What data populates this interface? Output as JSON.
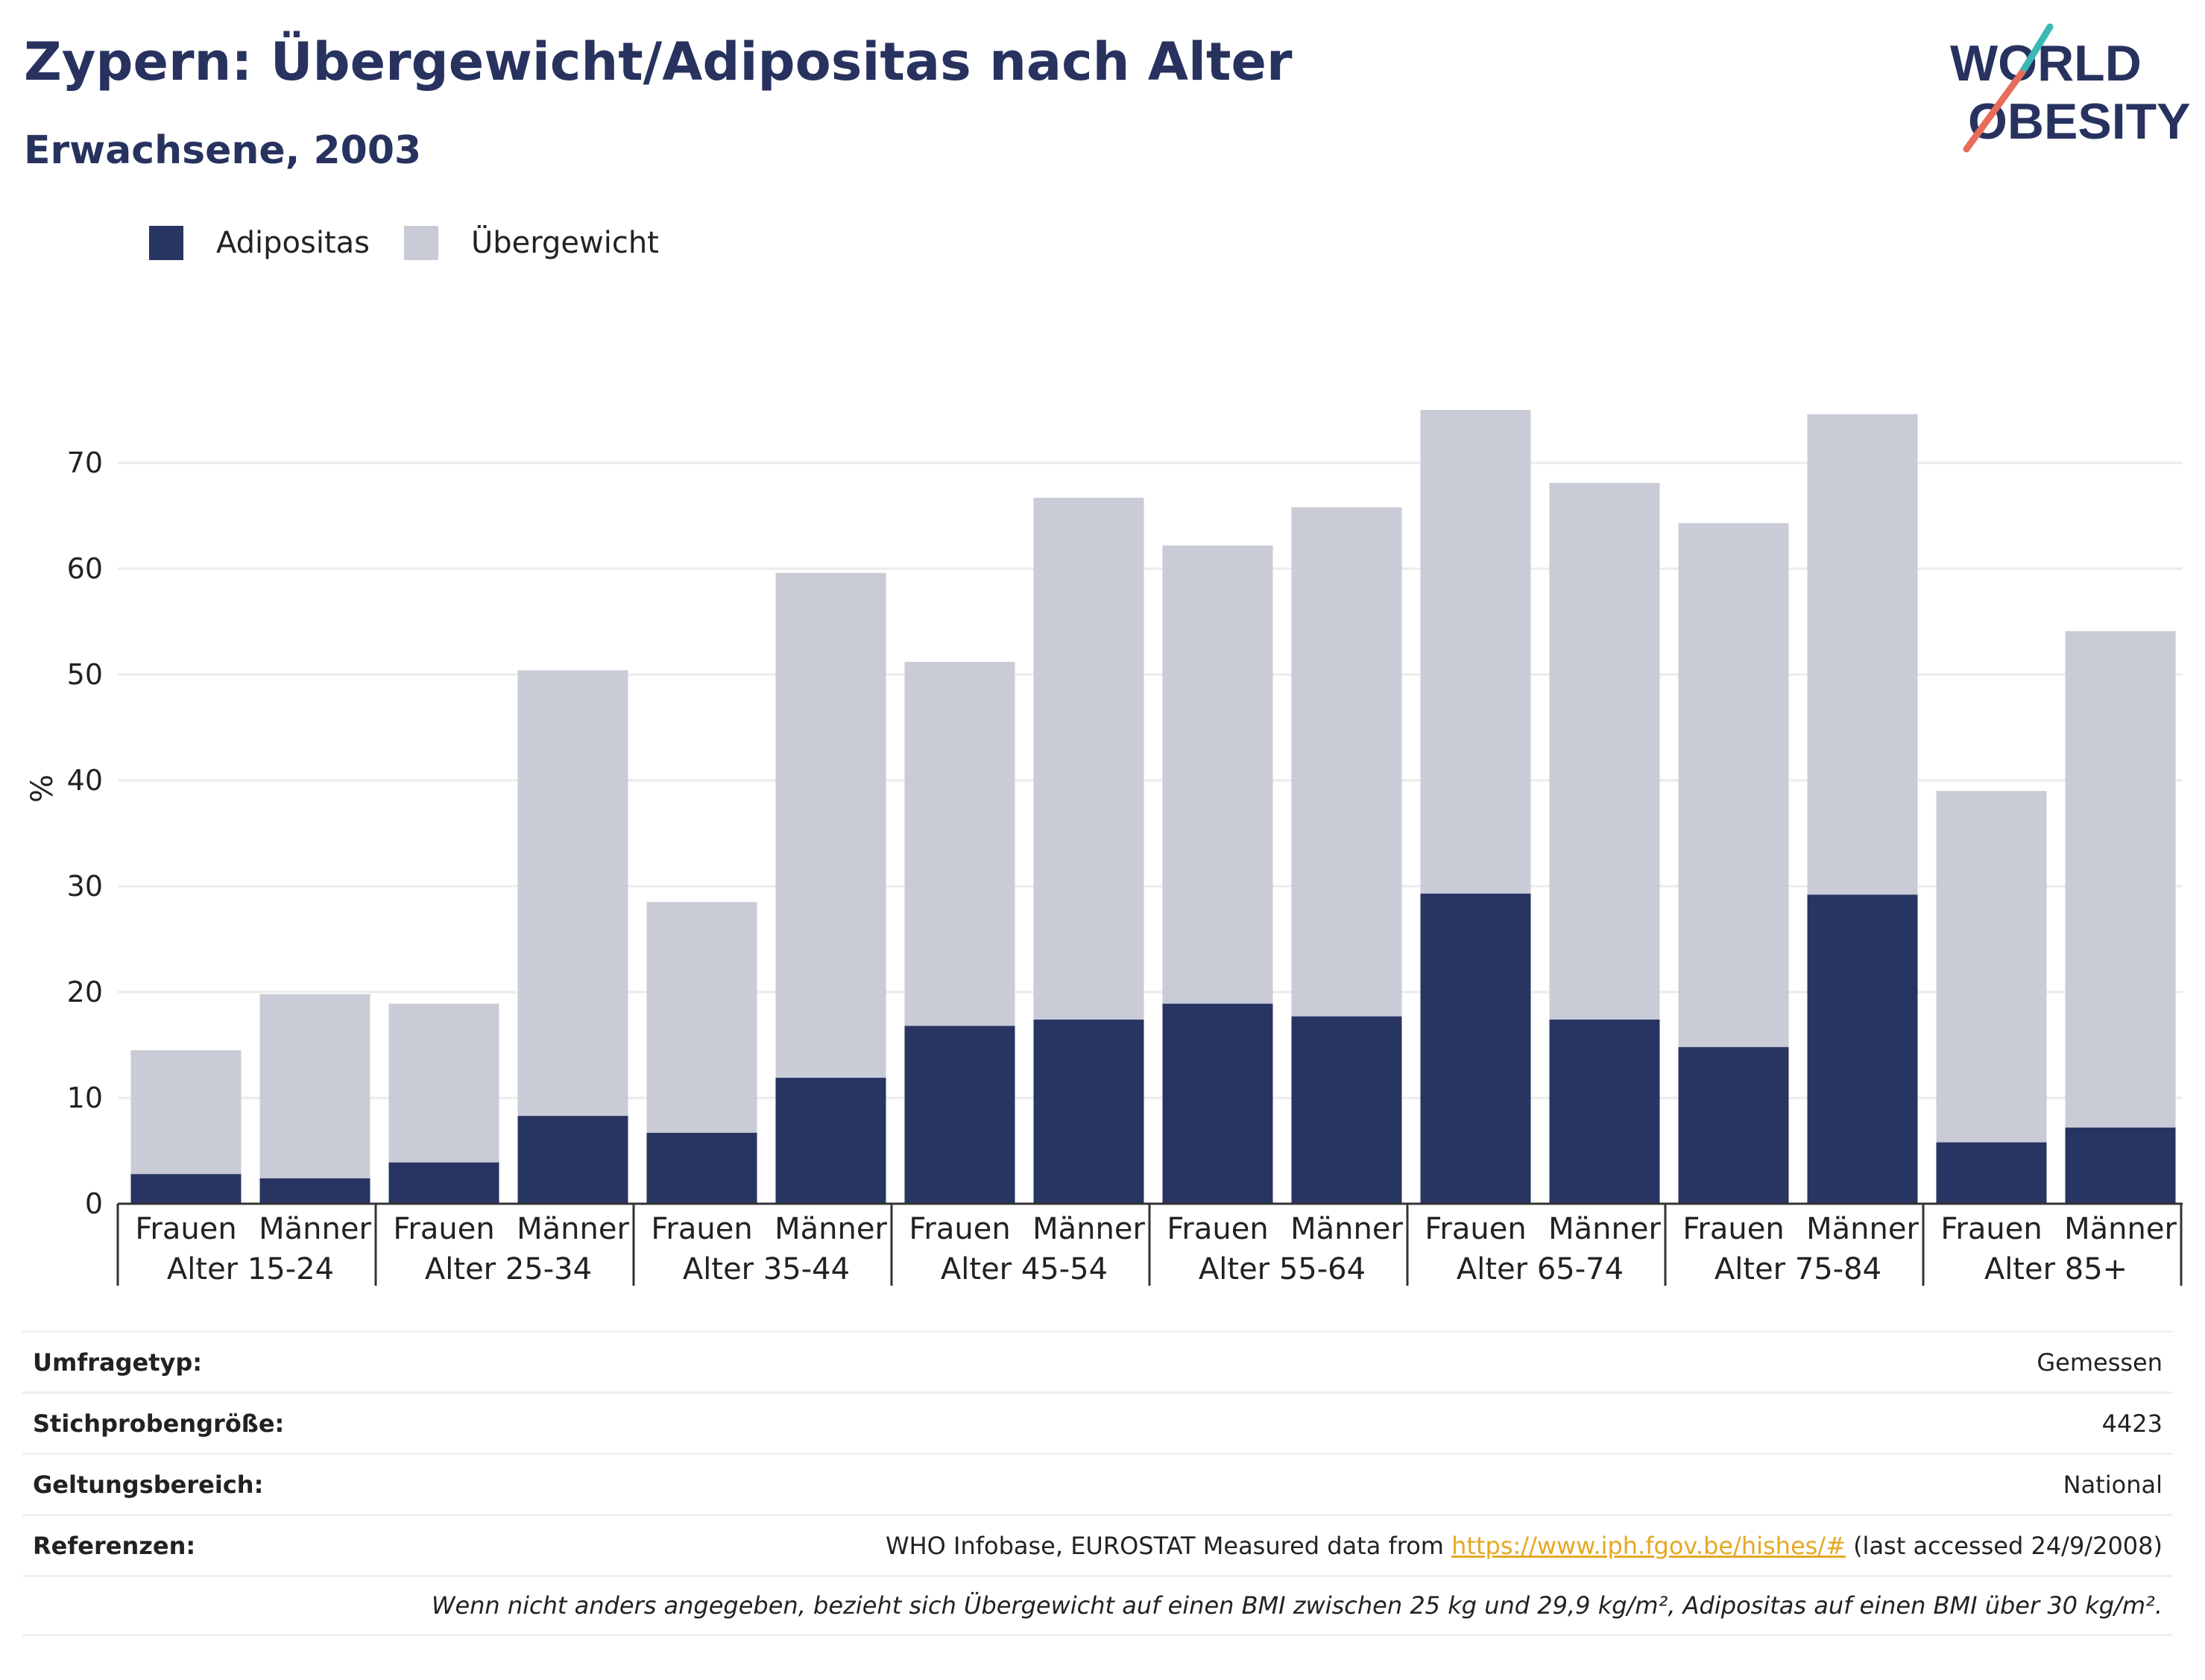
{
  "title": "Zypern: Übergewicht/Adipositas nach Alter",
  "subtitle": "Erwachsene, 2003",
  "logo": {
    "line1": "WORLD",
    "line2": "OBESITY"
  },
  "legend": [
    {
      "label": "Adipositas",
      "color": "#283462"
    },
    {
      "label": "Übergewicht",
      "color": "#c9cbd7"
    }
  ],
  "chart_data": {
    "type": "bar",
    "stacked": true,
    "ylabel": "%",
    "ylim": [
      0,
      80
    ],
    "yticks": [
      0,
      10,
      20,
      30,
      40,
      50,
      60,
      70
    ],
    "grid": true,
    "groups": [
      "Alter 15-24",
      "Alter 25-34",
      "Alter 35-44",
      "Alter 45-54",
      "Alter 55-64",
      "Alter 65-74",
      "Alter 75-84",
      "Alter 85+"
    ],
    "subcategories": [
      "Frauen",
      "Männer"
    ],
    "series": [
      {
        "name": "Adipositas",
        "color": "#283462",
        "values": [
          2.8,
          2.4,
          3.9,
          8.3,
          6.7,
          11.9,
          16.8,
          17.4,
          18.9,
          17.7,
          29.3,
          17.4,
          14.8,
          29.2,
          5.8,
          7.2
        ]
      },
      {
        "name": "Übergewicht",
        "color": "#c9cbd7",
        "values": [
          11.7,
          17.4,
          15.0,
          42.1,
          21.8,
          47.7,
          34.4,
          49.3,
          43.3,
          48.1,
          45.7,
          50.7,
          49.5,
          45.4,
          33.2,
          46.9
        ]
      }
    ],
    "totals": [
      14.5,
      19.8,
      18.9,
      50.4,
      28.5,
      59.6,
      51.2,
      66.7,
      62.2,
      65.8,
      75.0,
      68.1,
      64.3,
      74.6,
      39.0,
      54.1
    ]
  },
  "info": {
    "survey_type": {
      "label": "Umfragetyp:",
      "value": "Gemessen"
    },
    "sample_size": {
      "label": "Stichprobengröße:",
      "value": "4423"
    },
    "scope": {
      "label": "Geltungsbereich:",
      "value": "National"
    },
    "references": {
      "label": "Referenzen:",
      "prefix": "WHO Infobase, EUROSTAT Measured data from ",
      "link": "https://www.iph.fgov.be/hishes/#",
      "suffix": " (last accessed 24/9/2008)"
    },
    "note": "Wenn nicht anders angegeben, bezieht sich Übergewicht auf einen BMI zwischen 25 kg und 29,9 kg/m², Adipositas auf einen BMI über 30 kg/m²."
  }
}
